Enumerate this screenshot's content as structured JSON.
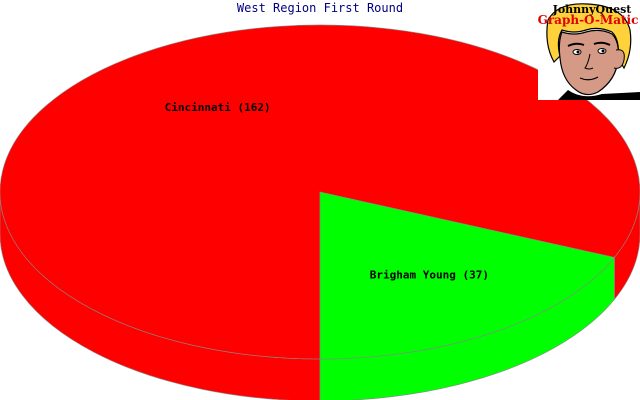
{
  "chart_data": {
    "type": "pie",
    "title": "West Region First Round",
    "style": "3d",
    "categories": [
      "Cincinnati",
      "Brigham Young"
    ],
    "values": [
      162,
      37
    ],
    "colors": [
      "#ff0000",
      "#00ff00"
    ],
    "labels": [
      "Cincinnati (162)",
      "Brigham Young (37)"
    ]
  },
  "logo": {
    "line1": "JohnnyQuest",
    "line2": "Graph-O-Matic"
  }
}
